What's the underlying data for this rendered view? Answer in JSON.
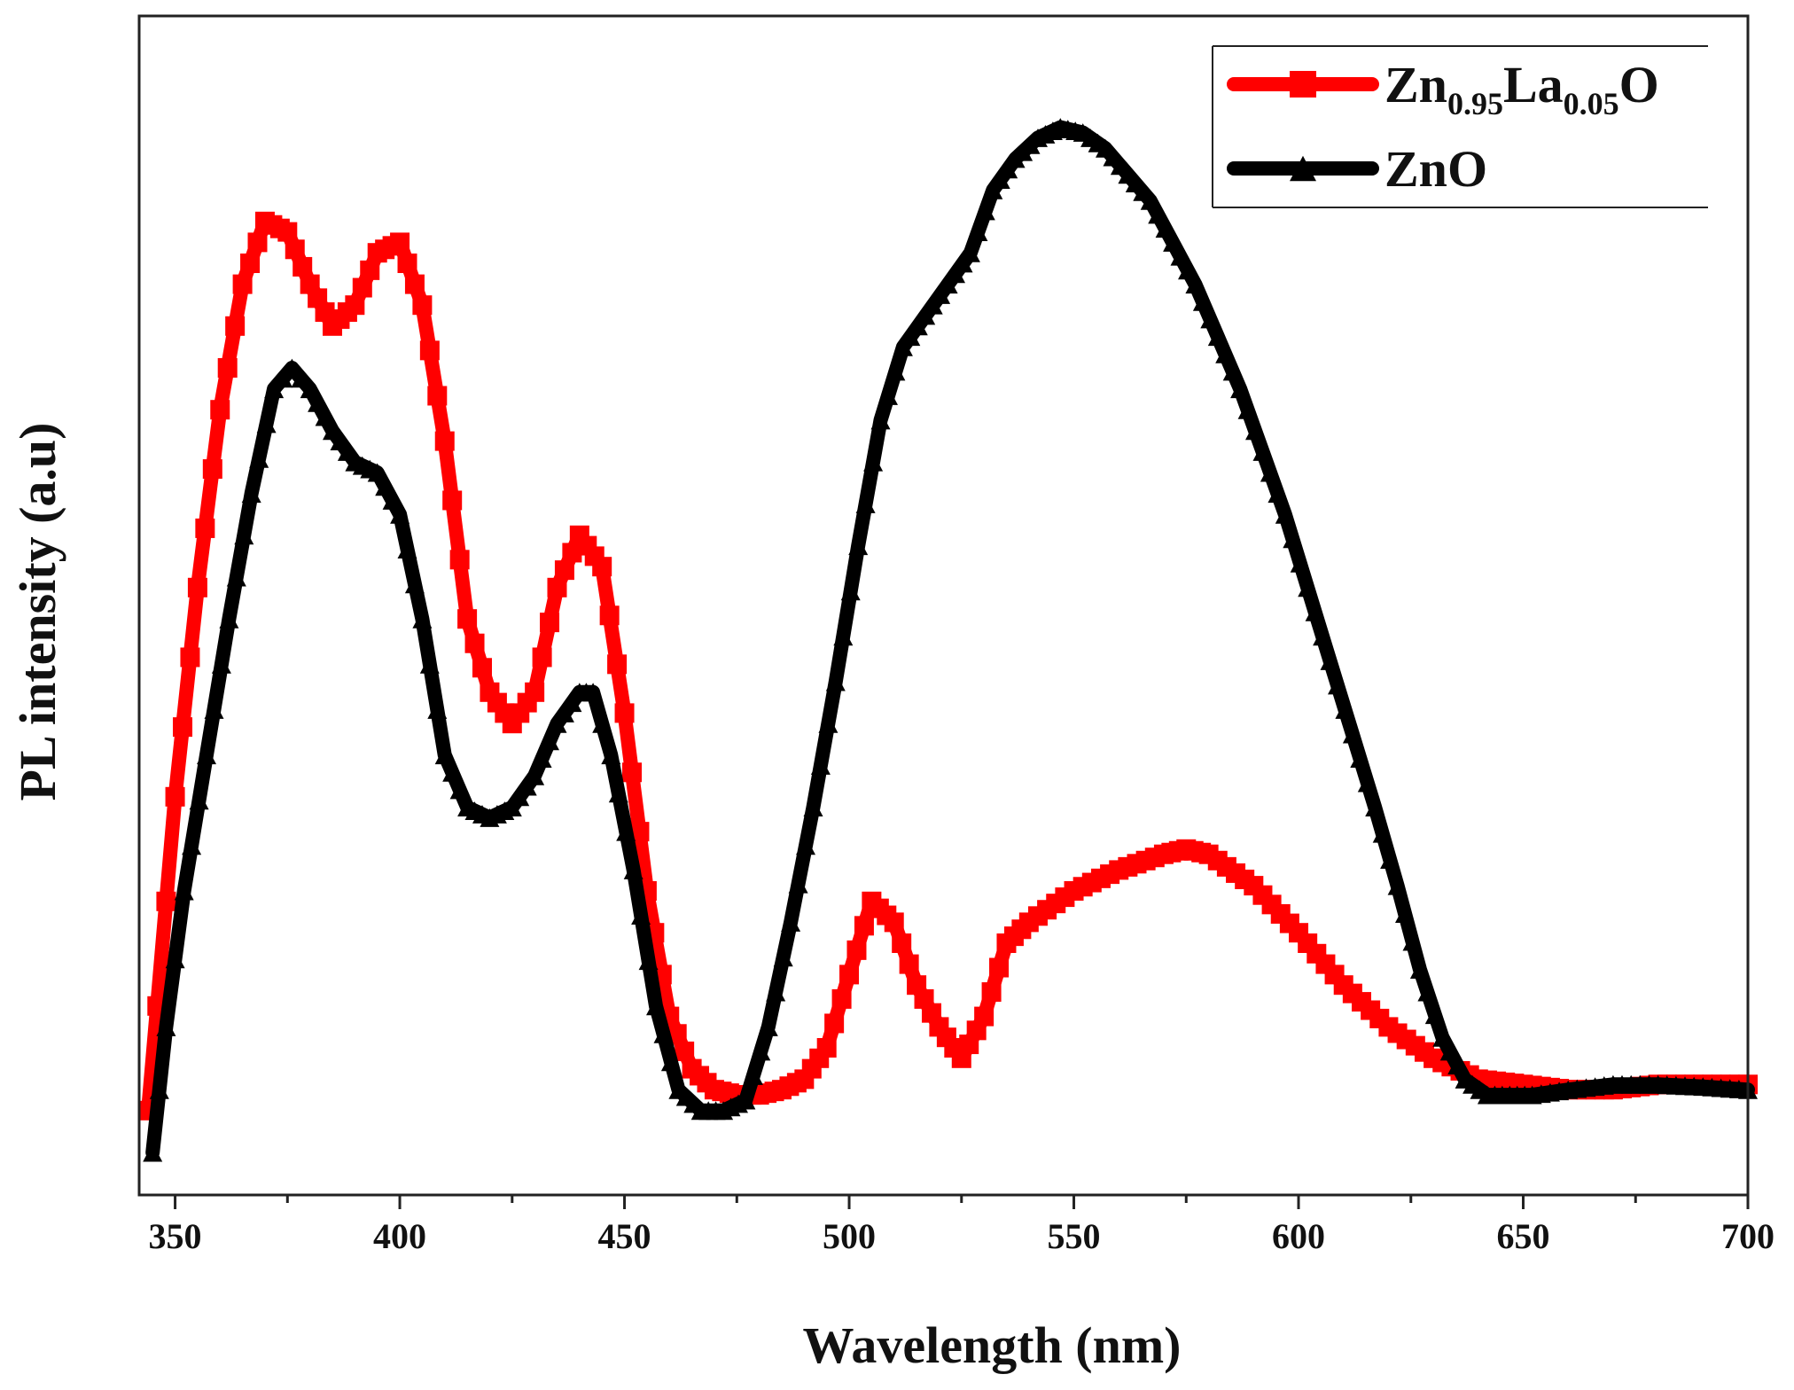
{
  "chart_data": {
    "type": "line",
    "title": "",
    "xlabel": "Wavelength (nm)",
    "ylabel": "PL intensity (a.u)",
    "xlim": [
      342,
      700
    ],
    "ylim": [
      0,
      100
    ],
    "x_ticks": [
      350,
      400,
      450,
      500,
      550,
      600,
      650,
      700
    ],
    "x_tick_labels": [
      "350",
      "400",
      "450",
      "500",
      "550",
      "600",
      "650",
      "700"
    ],
    "x_minor_ticks": [
      375,
      425,
      475,
      525,
      575,
      625,
      675
    ],
    "y_ticks_labeled": false,
    "grid": false,
    "legend_position": "top-right",
    "series": [
      {
        "name": "Zn0.95La0.05O",
        "legend": {
          "parts": [
            {
              "text": "Zn",
              "sub": false
            },
            {
              "text": "0.95",
              "sub": true
            },
            {
              "text": "La",
              "sub": false
            },
            {
              "text": "0.05",
              "sub": true
            },
            {
              "text": "O",
              "sub": false
            }
          ]
        },
        "color": "#ff0000",
        "marker": "square",
        "x": [
          344,
          346,
          350,
          355,
          360,
          365,
          370,
          375,
          380,
          385,
          390,
          395,
          400,
          405,
          410,
          415,
          420,
          425,
          430,
          435,
          440,
          445,
          450,
          455,
          460,
          465,
          470,
          475,
          480,
          485,
          490,
          495,
          500,
          505,
          510,
          515,
          520,
          525,
          530,
          535,
          540,
          550,
          560,
          570,
          575,
          580,
          590,
          600,
          610,
          620,
          630,
          640,
          650,
          660,
          670,
          680,
          690,
          700
        ],
        "y": [
          4,
          14,
          34,
          54,
          71,
          83,
          89,
          88,
          83,
          79,
          81,
          86,
          87,
          81,
          68,
          51,
          44,
          41,
          44,
          54,
          59,
          56,
          42,
          25,
          13,
          8,
          6,
          5.5,
          5.5,
          6,
          7,
          10,
          17,
          24,
          22,
          16,
          12,
          9,
          13,
          20,
          22,
          25,
          27,
          28.5,
          29,
          28.5,
          25.5,
          21,
          16,
          12,
          9,
          7,
          6.5,
          6,
          6,
          6.5,
          6.5,
          6.5
        ]
      },
      {
        "name": "ZnO",
        "legend": {
          "parts": [
            {
              "text": "ZnO",
              "sub": false
            }
          ]
        },
        "color": "#000000",
        "marker": "triangle",
        "x": [
          345,
          348,
          352,
          357,
          362,
          367,
          372,
          376,
          380,
          385,
          390,
          395,
          400,
          405,
          410,
          415,
          420,
          425,
          430,
          435,
          440,
          443,
          447,
          452,
          457,
          462,
          467,
          472,
          477,
          482,
          487,
          492,
          497,
          502,
          507,
          512,
          517,
          522,
          527,
          532,
          537,
          542,
          547,
          552,
          557,
          562,
          567,
          572,
          577,
          582,
          587,
          592,
          597,
          602,
          607,
          612,
          617,
          622,
          627,
          632,
          637,
          642,
          647,
          652,
          660,
          670,
          680,
          690,
          700
        ],
        "y": [
          0,
          12,
          25,
          38,
          51,
          63,
          73,
          75,
          73,
          69,
          66,
          65,
          61,
          51,
          38,
          33,
          32,
          33,
          36,
          41,
          44,
          44,
          38,
          27,
          14,
          6,
          4,
          4,
          5,
          12,
          22,
          33,
          45,
          58,
          70,
          77,
          80,
          83,
          86,
          92,
          95,
          97,
          98,
          97.5,
          96,
          93.5,
          91,
          87,
          83,
          78,
          73,
          67,
          61,
          54,
          47,
          40,
          33,
          25.5,
          17.5,
          11,
          7,
          5.5,
          5.5,
          5.5,
          6,
          6.5,
          6.5,
          6.3,
          6
        ]
      }
    ]
  }
}
